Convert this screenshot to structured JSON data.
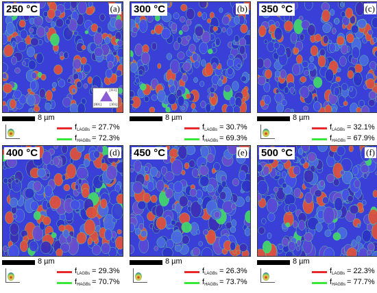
{
  "panels": [
    {
      "temp": "250 °C",
      "label": "(a)",
      "scale": "8 µm",
      "lagb_value": "27.7%",
      "hagb_value": "72.3%",
      "red_fraction": 0.277,
      "show_key": true
    },
    {
      "temp": "300 °C",
      "label": "(b)",
      "scale": "8 µm",
      "lagb_value": "30.7%",
      "hagb_value": "69.3%",
      "red_fraction": 0.307,
      "show_key": false
    },
    {
      "temp": "350 °C",
      "label": "(c)",
      "scale": "8 µm",
      "lagb_value": "32.1%",
      "hagb_value": "67.9%",
      "red_fraction": 0.321,
      "show_key": false
    },
    {
      "temp": "400 °C",
      "label": "(d)",
      "scale": "8 µm",
      "lagb_value": "29.3%",
      "hagb_value": "70.7%",
      "red_fraction": 0.293,
      "show_key": false
    },
    {
      "temp": "450 °C",
      "label": "(e)",
      "scale": "8 µm",
      "lagb_value": "26.3%",
      "hagb_value": "73.7%",
      "red_fraction": 0.263,
      "show_key": false
    },
    {
      "temp": "500 °C",
      "label": "(f)",
      "scale": "8 µm",
      "lagb_value": "22.3%",
      "hagb_value": "77.7%",
      "red_fraction": 0.223,
      "show_key": false
    }
  ],
  "legend": {
    "f": "f",
    "lagb_sub": "LAGBs",
    "hagb_sub": "HAGBs",
    "eq": "=",
    "lagb_color": "#e8272b",
    "hagb_color": "#38e838"
  },
  "ipf_key": {
    "k111": "[111]",
    "k001": "[001]",
    "k101": "[101]"
  },
  "map_colors": {
    "blue": "#3a3fd8",
    "red": "#e2513a",
    "green": "#42d86a",
    "boundary": "#5fe08a",
    "dark_blue": "#2a2bb0"
  }
}
